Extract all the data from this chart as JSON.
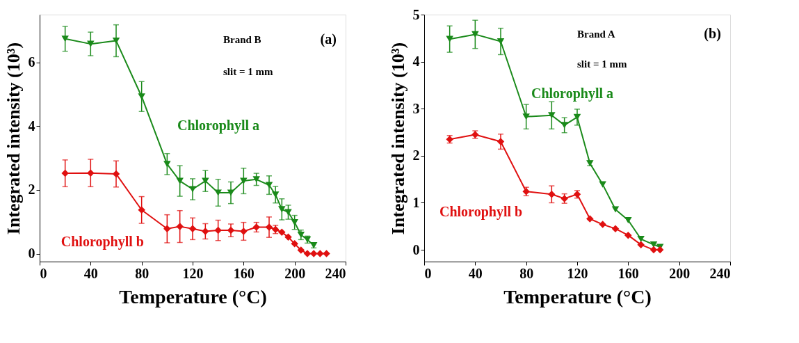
{
  "chart_data": [
    {
      "type": "line",
      "xlabel": "Temperature (°C)",
      "ylabel": "Integrated intensity (10³)",
      "annotations": [
        "Brand B",
        "slit = 1 mm",
        "(a)"
      ],
      "xlim": [
        0,
        240
      ],
      "xticks": [
        0,
        40,
        80,
        120,
        160,
        200,
        240
      ],
      "ylim": [
        -0.25,
        7.5
      ],
      "yticks": [
        0,
        2,
        4,
        6
      ],
      "grid": false,
      "line_style": "solid",
      "series": [
        {
          "name": "Chlorophyll a",
          "color": "#1a8a1a",
          "marker": "triangle",
          "x": [
            20,
            40,
            60,
            80,
            100,
            110,
            120,
            130,
            140,
            150,
            160,
            170,
            180,
            185,
            190,
            195,
            200,
            205,
            210,
            215
          ],
          "values": [
            6.74,
            6.58,
            6.68,
            4.93,
            2.81,
            2.28,
            2.02,
            2.28,
            1.91,
            1.91,
            2.28,
            2.33,
            2.15,
            1.85,
            1.39,
            1.3,
            0.98,
            0.59,
            0.44,
            0.26
          ],
          "errors": [
            0.39,
            0.37,
            0.5,
            0.47,
            0.33,
            0.48,
            0.33,
            0.33,
            0.42,
            0.34,
            0.4,
            0.19,
            0.29,
            0.26,
            0.33,
            0.22,
            0.22,
            0.15,
            0.11,
            0.08
          ]
        },
        {
          "name": "Chlorophyll b",
          "color": "#e01010",
          "marker": "diamond",
          "x": [
            20,
            40,
            60,
            80,
            100,
            110,
            120,
            130,
            140,
            150,
            160,
            170,
            180,
            185,
            190,
            195,
            200,
            205,
            210,
            215,
            220,
            225
          ],
          "values": [
            2.52,
            2.53,
            2.5,
            1.37,
            0.78,
            0.85,
            0.78,
            0.7,
            0.73,
            0.73,
            0.7,
            0.83,
            0.83,
            0.76,
            0.67,
            0.52,
            0.31,
            0.11,
            0,
            0,
            0,
            0
          ],
          "errors": [
            0.42,
            0.43,
            0.41,
            0.42,
            0.44,
            0.5,
            0.34,
            0.24,
            0.32,
            0.2,
            0.28,
            0.15,
            0.32,
            0.13,
            null,
            null,
            null,
            null,
            null,
            null,
            null,
            null
          ]
        }
      ]
    },
    {
      "type": "line",
      "xlabel": "Temperature (°C)",
      "ylabel": "Integrated intensity (10³)",
      "annotations": [
        "Brand A",
        "slit = 1 mm",
        "(b)"
      ],
      "xlim": [
        0,
        240
      ],
      "xticks": [
        0,
        40,
        80,
        120,
        160,
        200,
        240
      ],
      "ylim": [
        -0.25,
        5
      ],
      "yticks": [
        0,
        1,
        2,
        3,
        4,
        5
      ],
      "grid": false,
      "line_style": "solid",
      "series": [
        {
          "name": "Chlorophyll a",
          "color": "#1a8a1a",
          "marker": "triangle",
          "x": [
            20,
            40,
            60,
            80,
            100,
            110,
            120,
            130,
            140,
            150,
            160,
            170,
            180,
            185
          ],
          "values": [
            4.48,
            4.58,
            4.43,
            2.83,
            2.86,
            2.65,
            2.82,
            1.84,
            1.39,
            0.86,
            0.63,
            0.23,
            0.11,
            0.06
          ],
          "errors": [
            0.28,
            0.3,
            0.28,
            0.26,
            0.29,
            0.16,
            0.17,
            0.05,
            null,
            null,
            null,
            null,
            null,
            null
          ]
        },
        {
          "name": "Chlorophyll b",
          "color": "#e01010",
          "marker": "diamond",
          "x": [
            20,
            40,
            60,
            80,
            100,
            110,
            120,
            130,
            140,
            150,
            160,
            170,
            180,
            185
          ],
          "values": [
            2.35,
            2.45,
            2.3,
            1.24,
            1.18,
            1.09,
            1.18,
            0.66,
            0.54,
            0.45,
            0.31,
            0.11,
            0,
            0
          ],
          "errors": [
            0.08,
            0.08,
            0.16,
            0.09,
            0.18,
            0.1,
            0.08,
            null,
            null,
            null,
            null,
            null,
            null,
            null
          ]
        }
      ]
    }
  ]
}
